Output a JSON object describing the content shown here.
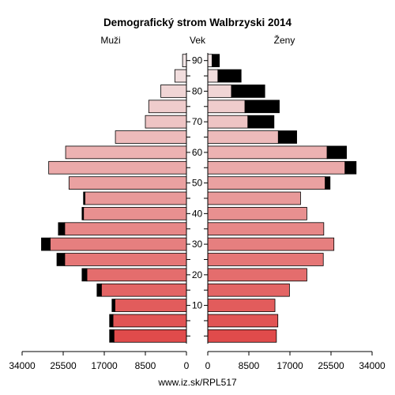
{
  "chart_data": {
    "type": "bar",
    "title": "Demografický strom Walbrzyski 2014",
    "left_label": "Muži",
    "center_label": "Vek",
    "right_label": "Ženy",
    "x_max": 34000,
    "x_ticks": [
      "34000",
      "25500",
      "17000",
      "8500",
      "0"
    ],
    "x_ticks_right": [
      "0",
      "8500",
      "17000",
      "25500",
      "34000"
    ],
    "x_tick_values": [
      34000,
      25500,
      17000,
      8500,
      0
    ],
    "x_tick_values_right": [
      0,
      8500,
      17000,
      25500,
      34000
    ],
    "age_groups": [
      "0-4",
      "5-9",
      "10-14",
      "15-19",
      "20-24",
      "25-29",
      "30-34",
      "35-39",
      "40-44",
      "45-49",
      "50-54",
      "55-59",
      "60-64",
      "65-69",
      "70-74",
      "75-79",
      "80-84",
      "85-89",
      "90+"
    ],
    "age_ticks": [
      "10",
      "20",
      "30",
      "40",
      "50",
      "60",
      "70",
      "80",
      "90"
    ],
    "age_tick_values": [
      10,
      20,
      30,
      40,
      50,
      60,
      70,
      80,
      90
    ],
    "series": [
      {
        "name": "Muži",
        "values": [
          15000,
          15200,
          14800,
          17600,
          20600,
          25200,
          28200,
          25200,
          21300,
          21000,
          24300,
          28500,
          25000,
          14700,
          8500,
          7800,
          5300,
          2400,
          800
        ],
        "excess": [
          900,
          700,
          600,
          900,
          1000,
          1600,
          1800,
          1300,
          300,
          300,
          0,
          0,
          0,
          0,
          0,
          0,
          0,
          0,
          0
        ]
      },
      {
        "name": "Ženy",
        "values": [
          14200,
          14500,
          13900,
          16900,
          20500,
          23900,
          26100,
          24000,
          20500,
          19200,
          24300,
          28400,
          24700,
          14600,
          8300,
          7700,
          4900,
          2100,
          900
        ],
        "excess": [
          0,
          0,
          0,
          0,
          0,
          0,
          0,
          0,
          0,
          0,
          1000,
          2300,
          4000,
          3800,
          5400,
          7100,
          6900,
          4800,
          1500
        ]
      }
    ],
    "colors": {
      "young": "#e04b4b",
      "old": "#f2e6e6",
      "excess": "#000000",
      "outline": "#000000"
    },
    "footer": "www.iz.sk/RPL517"
  }
}
